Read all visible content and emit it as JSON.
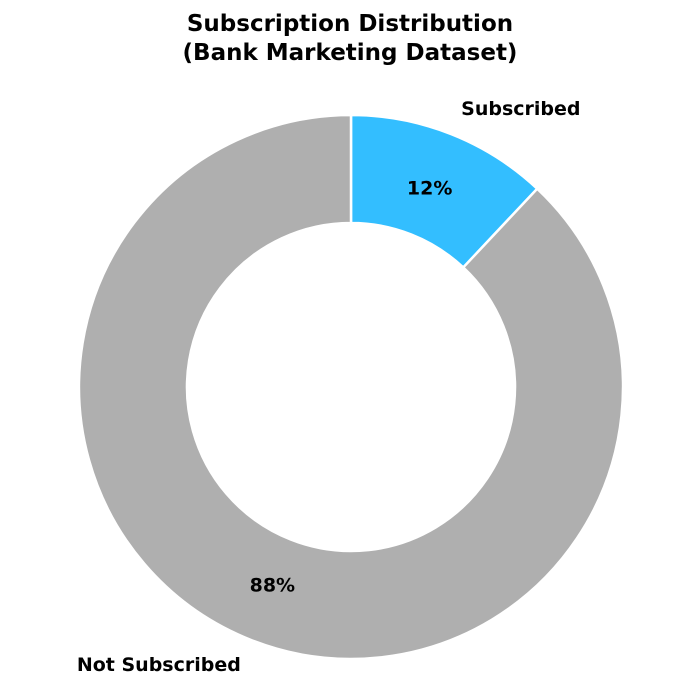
{
  "chart_data": {
    "type": "pie",
    "variant": "donut",
    "title": "Subscription Distribution",
    "subtitle": "(Bank Marketing Dataset)",
    "start_angle_deg": 90,
    "direction": "clockwise",
    "slices": [
      {
        "label": "Subscribed",
        "value": 12,
        "pct_label": "12%",
        "color": "#33BEFF"
      },
      {
        "label": "Not Subscribed",
        "value": 88,
        "pct_label": "88%",
        "color": "#AFAFAF"
      }
    ],
    "edge_color": "#FFFFFF",
    "legend": "none"
  }
}
